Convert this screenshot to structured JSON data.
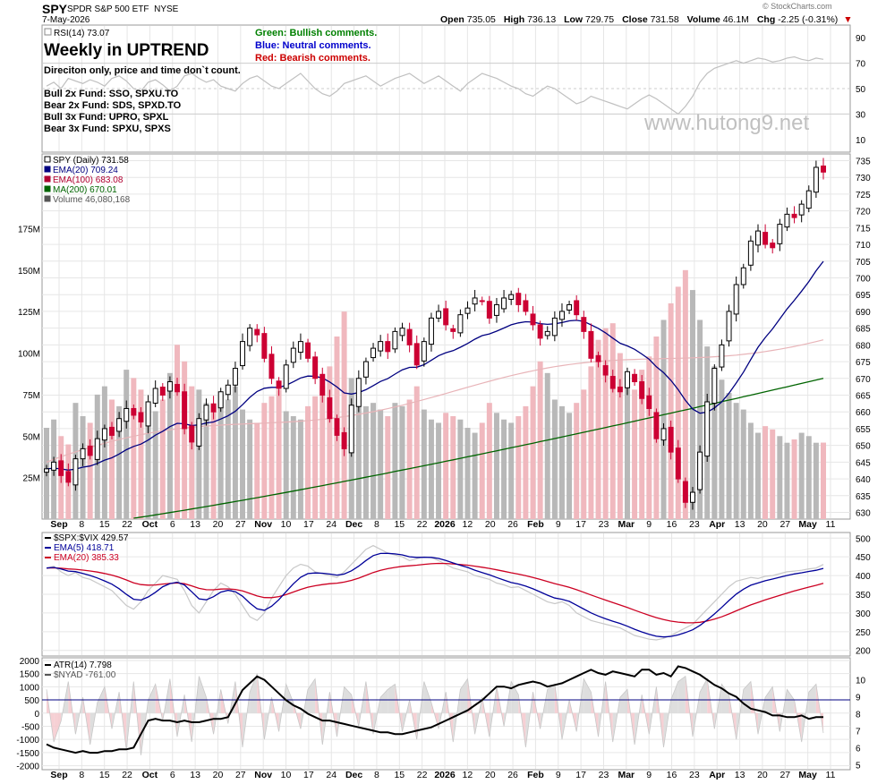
{
  "header": {
    "symbol": "SPY",
    "name": "SPDR S&P 500 ETF",
    "exchange": "NYSE",
    "date": "7-May-2026",
    "watermark_site": "© StockCharts.com",
    "open_label": "Open",
    "open": "735.05",
    "high_label": "High",
    "high": "736.13",
    "low_label": "Low",
    "low": "729.75",
    "close_label": "Close",
    "close": "731.58",
    "volume_label": "Volume",
    "volume": "46.1M",
    "chg_label": "Chg",
    "chg": "-2.25 (-0.31%)"
  },
  "annotations": {
    "title": "Weekly in UPTREND",
    "subtitle": "Direciton only, price and time don`t count.",
    "funds": [
      "Bull 2x Fund: SSO, SPXU.TO",
      "Bear 2x Fund: SDS, SPXD.TO",
      "Bull 3x Fund: UPRO, SPXL",
      "Bear 3x Fund: SPXU, SPXS"
    ],
    "green_note": "Green: Bullish comments.",
    "blue_note": "Blue: Neutral comments.",
    "red_note": "Red: Bearish comments.",
    "watermark": "www.hutong9.net"
  },
  "colors": {
    "bullish": "#008000",
    "neutral": "#0000cc",
    "bearish": "#cc0000",
    "up_candle": "#000000",
    "down_candle": "#cc0033",
    "ema20": "#000080",
    "ema100": "#e8b4b8",
    "ma200": "#006400",
    "vol_up": "#b8b8b8",
    "vol_down": "#f0b8be",
    "grid": "#e6e6e6"
  },
  "x_axis": {
    "labels": [
      "Sep",
      "8",
      "15",
      "22",
      "Oct",
      "6",
      "13",
      "20",
      "27",
      "Nov",
      "10",
      "17",
      "24",
      "Dec",
      "8",
      "15",
      "22",
      "2026",
      "12",
      "20",
      "26",
      "Feb",
      "9",
      "17",
      "23",
      "Mar",
      "9",
      "16",
      "23",
      "Apr",
      "13",
      "20",
      "27",
      "May",
      "11"
    ],
    "bold": [
      "Sep",
      "Oct",
      "Nov",
      "Dec",
      "2026",
      "Feb",
      "Mar",
      "Apr",
      "May"
    ]
  },
  "chart_data": [
    {
      "type": "line",
      "panel": "rsi",
      "legend": "RSI(14) 73.07",
      "ylim": [
        0,
        100
      ],
      "y_ticks": [
        10,
        30,
        50,
        70,
        90
      ],
      "reference_lines": [
        30,
        50,
        70
      ],
      "values": [
        52,
        55,
        50,
        58,
        56,
        54,
        57,
        55,
        52,
        58,
        60,
        56,
        50,
        48,
        55,
        57,
        53,
        48,
        52,
        60,
        62,
        58,
        55,
        57,
        52,
        50,
        48,
        54,
        58,
        60,
        56,
        52,
        50,
        54,
        58,
        62,
        56,
        50,
        46,
        44,
        48,
        54,
        56,
        58,
        60,
        56,
        52,
        55,
        58,
        60,
        62,
        58,
        54,
        57,
        60,
        56,
        52,
        48,
        54,
        58,
        62,
        60,
        58,
        55,
        52,
        50,
        46,
        44,
        48,
        52,
        50,
        46,
        42,
        38,
        40,
        44,
        42,
        40,
        38,
        36,
        34,
        38,
        42,
        45,
        42,
        38,
        34,
        30,
        36,
        44,
        55,
        62,
        66,
        68,
        70,
        72,
        70,
        72,
        74,
        73,
        71,
        72,
        74,
        75,
        73,
        72,
        74,
        73
      ]
    },
    {
      "type": "candlestick",
      "panel": "price",
      "legend": [
        "SPY (Daily) 731.58",
        "EMA(20) 709.24",
        "EMA(100) 683.08",
        "MA(200) 670.01",
        "Volume 46,080,168"
      ],
      "ylim": [
        628,
        737
      ],
      "y_ticks": [
        630,
        635,
        640,
        645,
        650,
        655,
        660,
        665,
        670,
        675,
        680,
        685,
        690,
        695,
        700,
        705,
        710,
        715,
        720,
        725,
        730,
        735
      ],
      "vol_ticks": [
        {
          "v": 25,
          "label": "25M"
        },
        {
          "v": 50,
          "label": "50M"
        },
        {
          "v": 75,
          "label": "75M"
        },
        {
          "v": 100,
          "label": "100M"
        },
        {
          "v": 125,
          "label": "125M"
        },
        {
          "v": 150,
          "label": "150M"
        },
        {
          "v": 175,
          "label": "175M"
        }
      ],
      "closes": [
        643,
        645,
        641,
        639,
        646,
        649,
        647,
        652,
        655,
        653,
        658,
        661,
        659,
        657,
        663,
        667,
        665,
        669,
        666,
        655,
        651,
        658,
        662,
        660,
        666,
        668,
        673,
        681,
        685,
        683,
        676,
        670,
        667,
        674,
        679,
        681,
        676,
        670,
        665,
        658,
        653,
        649,
        662,
        670,
        675,
        679,
        681,
        678,
        684,
        685,
        680,
        674,
        681,
        688,
        690,
        686,
        684,
        689,
        691,
        694,
        693,
        688,
        692,
        694,
        695,
        692,
        690,
        686,
        682,
        684,
        688,
        690,
        692,
        689,
        684,
        676,
        675,
        671,
        667,
        666,
        672,
        669,
        664,
        661,
        652,
        655,
        648,
        640,
        633,
        636,
        648,
        663,
        673,
        680,
        690,
        698,
        703,
        711,
        714,
        710,
        709,
        716,
        719,
        718,
        722,
        726,
        733,
        731.58
      ],
      "volumes": [
        55,
        60,
        50,
        45,
        70,
        62,
        58,
        75,
        80,
        72,
        68,
        90,
        85,
        78,
        70,
        65,
        72,
        88,
        105,
        95,
        80,
        78,
        70,
        68,
        75,
        72,
        80,
        66,
        60,
        58,
        70,
        74,
        78,
        65,
        62,
        60,
        68,
        74,
        80,
        92,
        110,
        125,
        85,
        72,
        68,
        70,
        66,
        62,
        70,
        68,
        72,
        80,
        66,
        60,
        58,
        64,
        62,
        60,
        55,
        52,
        58,
        70,
        64,
        60,
        58,
        62,
        68,
        80,
        95,
        88,
        72,
        68,
        64,
        70,
        78,
        92,
        108,
        115,
        118,
        100,
        86,
        78,
        90,
        98,
        110,
        120,
        130,
        140,
        150,
        138,
        120,
        104,
        92,
        84,
        76,
        70,
        66,
        58,
        52,
        56,
        54,
        50,
        46,
        48,
        52,
        50,
        46,
        46.08
      ],
      "ema20_last": 709.24,
      "ema100_last": 683.08,
      "ma200_last": 670.01
    },
    {
      "type": "line",
      "panel": "spxvix",
      "legend": [
        "$SPX:$VIX 429.57",
        "EMA(5) 418.71",
        "EMA(20) 385.33"
      ],
      "ylim": [
        185,
        515
      ],
      "y_ticks": [
        200,
        250,
        300,
        350,
        400,
        450,
        500
      ],
      "values": [
        420,
        425,
        410,
        400,
        408,
        395,
        390,
        380,
        370,
        360,
        340,
        320,
        310,
        330,
        360,
        380,
        400,
        395,
        390,
        360,
        320,
        300,
        330,
        360,
        380,
        370,
        350,
        320,
        290,
        280,
        300,
        340,
        370,
        400,
        420,
        430,
        425,
        410,
        405,
        400,
        395,
        410,
        430,
        450,
        470,
        480,
        470,
        460,
        455,
        450,
        440,
        445,
        450,
        448,
        440,
        430,
        420,
        415,
        410,
        400,
        395,
        390,
        380,
        375,
        368,
        370,
        360,
        350,
        340,
        330,
        325,
        330,
        320,
        300,
        290,
        280,
        275,
        270,
        265,
        260,
        250,
        240,
        235,
        230,
        228,
        232,
        240,
        250,
        260,
        270,
        290,
        310,
        330,
        350,
        370,
        385,
        390,
        395,
        392,
        398,
        400,
        405,
        410,
        412,
        414,
        418,
        420,
        429.57
      ],
      "ema5_last": 418.71,
      "ema20_last": 385.33
    },
    {
      "type": "area",
      "panel": "atr_nyad",
      "legend": [
        "ATR(14) 7.798",
        "$NYAD -761.00"
      ],
      "ylim_left": [
        -2150,
        2100
      ],
      "y_ticks_left": [
        {
          "v": 2000,
          "label": "2000"
        },
        {
          "v": 1500,
          "label": "1500"
        },
        {
          "v": 1000,
          "label": "1000"
        },
        {
          "v": 500,
          "label": "500"
        },
        {
          "v": 0,
          "label": "0"
        },
        {
          "v": -500,
          "label": "-500"
        },
        {
          "v": -1000,
          "label": "-1000"
        },
        {
          "v": -1500,
          "label": "-1500"
        },
        {
          "v": -2000,
          "label": "-2000"
        }
      ],
      "ylim_right": [
        4.7,
        11.3
      ],
      "y_ticks_right": [
        5,
        6,
        7,
        8,
        9,
        10
      ],
      "nyad_reference": 500,
      "atr": [
        6.2,
        6.0,
        5.9,
        5.8,
        5.7,
        5.8,
        5.7,
        5.7,
        5.8,
        5.8,
        5.9,
        5.9,
        6.0,
        6.8,
        7.6,
        7.7,
        7.6,
        7.6,
        7.5,
        7.6,
        7.5,
        7.5,
        7.6,
        7.7,
        7.7,
        7.8,
        8.6,
        9.4,
        9.8,
        10.2,
        10.0,
        9.6,
        9.2,
        8.8,
        8.5,
        8.3,
        8.0,
        7.8,
        7.6,
        7.6,
        7.5,
        7.4,
        7.3,
        7.2,
        7.1,
        7.0,
        6.9,
        6.9,
        6.8,
        6.8,
        6.9,
        7.0,
        7.1,
        7.2,
        7.4,
        7.6,
        7.8,
        8.0,
        8.2,
        8.5,
        8.8,
        9.2,
        9.6,
        9.6,
        9.5,
        9.7,
        9.8,
        9.9,
        9.8,
        9.6,
        9.7,
        9.8,
        10.0,
        10.2,
        10.4,
        10.6,
        10.4,
        10.3,
        10.5,
        10.4,
        10.3,
        10.2,
        10.6,
        10.6,
        10.3,
        10.4,
        10.2,
        10.8,
        10.7,
        10.5,
        10.3,
        10.0,
        9.7,
        9.5,
        9.2,
        9.0,
        8.6,
        8.3,
        8.2,
        8.1,
        7.9,
        7.9,
        7.8,
        7.8,
        7.9,
        7.7,
        7.8,
        7.798
      ],
      "nyad": [
        900,
        -1100,
        -300,
        1200,
        -800,
        600,
        -1200,
        400,
        1000,
        -600,
        800,
        -1400,
        1200,
        -1600,
        500,
        1100,
        -300,
        1300,
        -900,
        700,
        -1100,
        1400,
        600,
        -800,
        900,
        -400,
        1200,
        -1300,
        800,
        1500,
        -1000,
        600,
        -700,
        1100,
        400,
        -600,
        900,
        1300,
        -1200,
        800,
        -900,
        1000,
        700,
        -500,
        1200,
        -800,
        600,
        900,
        1100,
        -700,
        500,
        -1000,
        1200,
        400,
        -600,
        800,
        -1100,
        900,
        1300,
        -800,
        600,
        -900,
        1000,
        -500,
        1200,
        700,
        -1300,
        800,
        -600,
        900,
        1100,
        -1000,
        500,
        -700,
        1300,
        800,
        -900,
        1200,
        -1100,
        600,
        900,
        -1200,
        700,
        -800,
        1000,
        -1300,
        500,
        1200,
        1400,
        -900,
        800,
        1300,
        -600,
        1100,
        700,
        -1000,
        900,
        1200,
        -800,
        600,
        1000,
        -700,
        900,
        500,
        -1100,
        800,
        1100,
        -761
      ]
    }
  ]
}
